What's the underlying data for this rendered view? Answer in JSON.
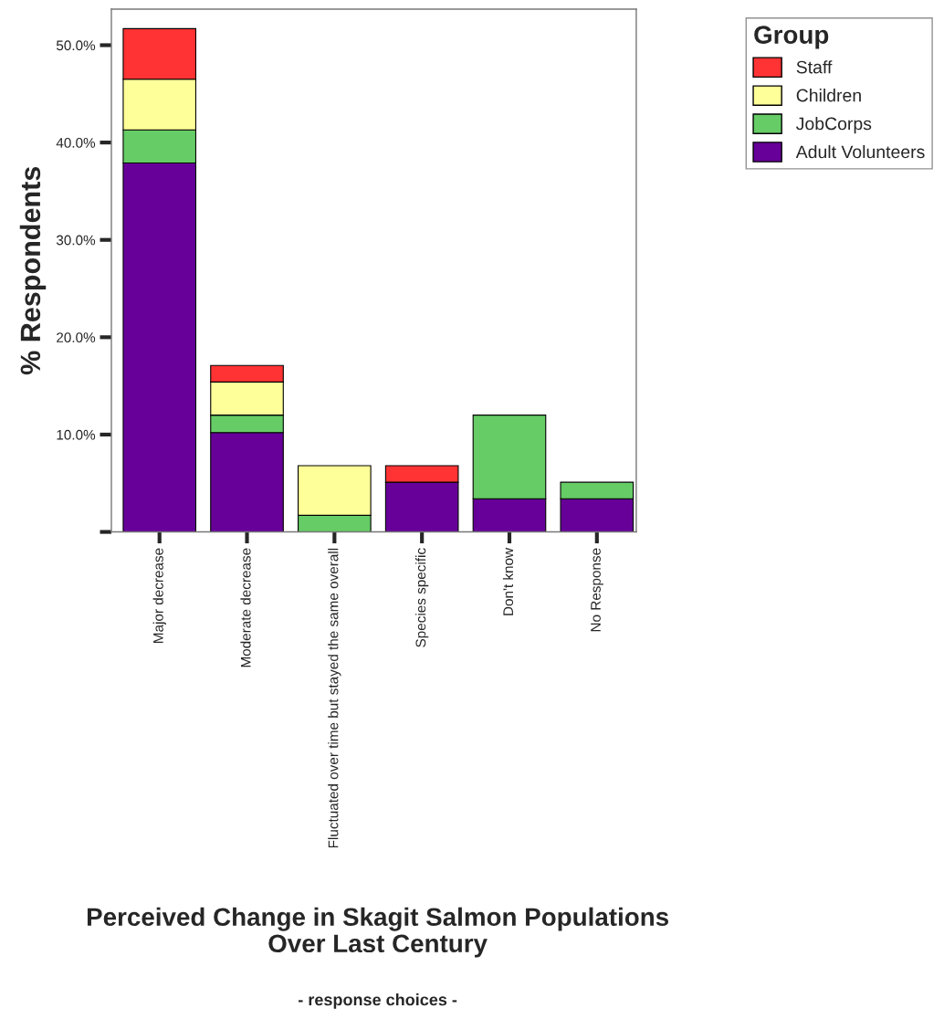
{
  "chart_data": {
    "type": "bar",
    "stacked": true,
    "xlabel": "Perceived Change in Skagit Salmon Populations\nOver Last Century",
    "ylabel": "% Respondents",
    "annotations": [
      "- response choices -"
    ],
    "legend_title": "Group",
    "legend": "top right",
    "categories": [
      "Major decrease",
      "Moderate decrease",
      "Fluctuated over time but stayed the same overall",
      "Species specific",
      "Don't know",
      "No Response"
    ],
    "series": [
      {
        "name": "Adult Volunteers",
        "color": "#660099",
        "values": [
          37.9,
          10.2,
          null,
          5.1,
          3.4,
          3.4
        ]
      },
      {
        "name": "JobCorps",
        "color": "#66cc66",
        "values": [
          3.4,
          1.8,
          1.7,
          null,
          8.6,
          1.7
        ]
      },
      {
        "name": "Children",
        "color": "#ffff99",
        "values": [
          5.2,
          3.4,
          5.1,
          null,
          null,
          null
        ]
      },
      {
        "name": "Staff",
        "color": "#ff3333",
        "values": [
          5.2,
          1.7,
          null,
          1.7,
          null,
          null
        ]
      }
    ],
    "ylim": [
      0,
      53.7
    ],
    "yticks": [
      {
        "value": 0,
        "label": null
      },
      {
        "value": 10,
        "label": "10.0%"
      },
      {
        "value": 20,
        "label": "20.0%"
      },
      {
        "value": 30,
        "label": "30.0%"
      },
      {
        "value": 40,
        "label": "40.0%"
      },
      {
        "value": 50,
        "label": "50.0%"
      }
    ],
    "grid": false
  }
}
